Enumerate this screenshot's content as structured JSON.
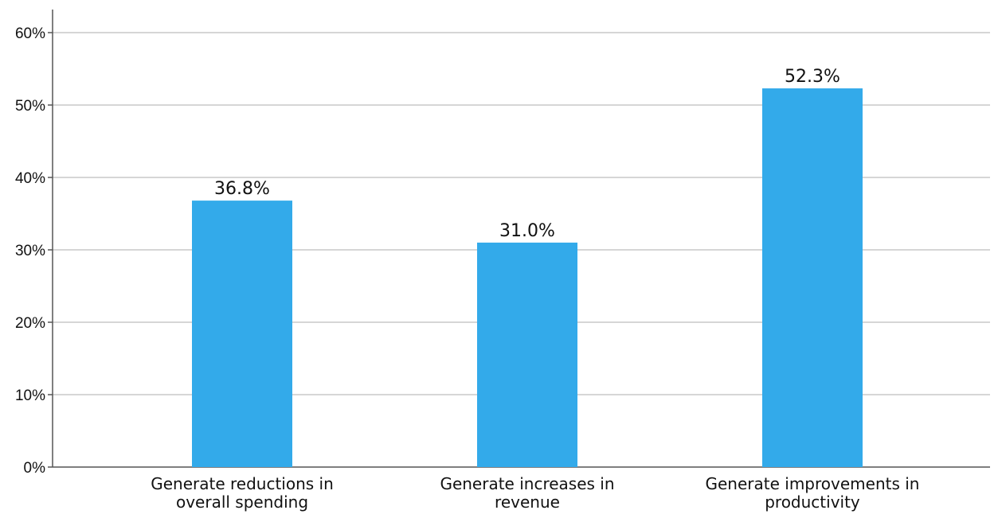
{
  "chart_data": {
    "type": "bar",
    "categories": [
      [
        "Generate reductions in",
        "overall spending"
      ],
      [
        "Generate increases in",
        "revenue"
      ],
      [
        "Generate improvements in",
        "productivity"
      ]
    ],
    "values": [
      36.8,
      31.0,
      52.3
    ],
    "data_labels": [
      "36.8%",
      "31.0%",
      "52.3%"
    ],
    "y_ticks": [
      "0%",
      "10%",
      "20%",
      "30%",
      "40%",
      "50%",
      "60%"
    ],
    "ylim": [
      0,
      60
    ],
    "grid": true,
    "bar_color": "#33aaea",
    "grid_color": "#c8c8c8",
    "axis_color": "#555555"
  }
}
